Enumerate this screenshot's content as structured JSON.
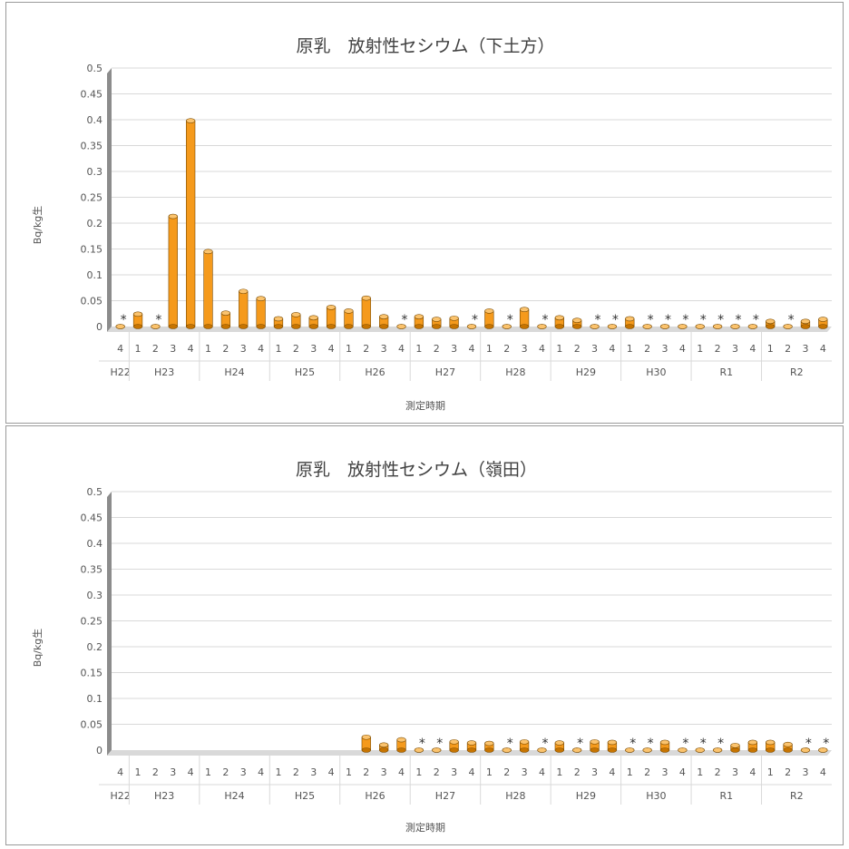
{
  "chart_data": [
    {
      "type": "bar",
      "title": "原乳　放射性セシウム（下土方）",
      "xlabel": "測定時期",
      "ylabel": "Bq/kg生",
      "ylim": [
        0,
        0.5
      ],
      "yticks": [
        "0",
        "0.05",
        "0.1",
        "0.15",
        "0.2",
        "0.25",
        "0.3",
        "0.35",
        "0.4",
        "0.45",
        "0.5"
      ],
      "groups": [
        {
          "label": "H22",
          "quarters": [
            "4"
          ]
        },
        {
          "label": "H23",
          "quarters": [
            "1",
            "2",
            "3",
            "4"
          ]
        },
        {
          "label": "H24",
          "quarters": [
            "1",
            "2",
            "3",
            "4"
          ]
        },
        {
          "label": "H25",
          "quarters": [
            "1",
            "2",
            "3",
            "4"
          ]
        },
        {
          "label": "H26",
          "quarters": [
            "1",
            "2",
            "3",
            "4"
          ]
        },
        {
          "label": "H27",
          "quarters": [
            "1",
            "2",
            "3",
            "4"
          ]
        },
        {
          "label": "H28",
          "quarters": [
            "1",
            "2",
            "3",
            "4"
          ]
        },
        {
          "label": "H29",
          "quarters": [
            "1",
            "2",
            "3",
            "4"
          ]
        },
        {
          "label": "H30",
          "quarters": [
            "1",
            "2",
            "3",
            "4"
          ]
        },
        {
          "label": "R1",
          "quarters": [
            "1",
            "2",
            "3",
            "4"
          ]
        },
        {
          "label": "R2",
          "quarters": [
            "1",
            "2",
            "3",
            "4"
          ]
        }
      ],
      "values": [
        0,
        0.024,
        0,
        0.213,
        0.398,
        0.145,
        0.026,
        0.068,
        0.054,
        0.015,
        0.023,
        0.017,
        0.037,
        0.03,
        0.055,
        0.019,
        0,
        0.019,
        0.014,
        0.016,
        0,
        0.03,
        0,
        0.033,
        0,
        0.017,
        0.012,
        0,
        0,
        0.015,
        0,
        0,
        0,
        0,
        0,
        0,
        0,
        0.01,
        0,
        0.01,
        0.014
      ],
      "nd_marker": "*",
      "nd": [
        true,
        false,
        true,
        false,
        false,
        false,
        false,
        false,
        false,
        false,
        false,
        false,
        false,
        false,
        false,
        false,
        true,
        false,
        false,
        false,
        true,
        false,
        true,
        false,
        true,
        false,
        false,
        true,
        true,
        false,
        true,
        true,
        true,
        true,
        true,
        true,
        true,
        false,
        true,
        false,
        false
      ],
      "colors": {
        "bar": "#F59A1C"
      }
    },
    {
      "type": "bar",
      "title": "原乳　放射性セシウム（嶺田）",
      "xlabel": "測定時期",
      "ylabel": "Bq/kg生",
      "ylim": [
        0,
        0.5
      ],
      "yticks": [
        "0",
        "0.05",
        "0.1",
        "0.15",
        "0.2",
        "0.25",
        "0.3",
        "0.35",
        "0.4",
        "0.45",
        "0.5"
      ],
      "groups": [
        {
          "label": "H22",
          "quarters": [
            "4"
          ]
        },
        {
          "label": "H23",
          "quarters": [
            "1",
            "2",
            "3",
            "4"
          ]
        },
        {
          "label": "H24",
          "quarters": [
            "1",
            "2",
            "3",
            "4"
          ]
        },
        {
          "label": "H25",
          "quarters": [
            "1",
            "2",
            "3",
            "4"
          ]
        },
        {
          "label": "H26",
          "quarters": [
            "1",
            "2",
            "3",
            "4"
          ]
        },
        {
          "label": "H27",
          "quarters": [
            "1",
            "2",
            "3",
            "4"
          ]
        },
        {
          "label": "H28",
          "quarters": [
            "1",
            "2",
            "3",
            "4"
          ]
        },
        {
          "label": "H29",
          "quarters": [
            "1",
            "2",
            "3",
            "4"
          ]
        },
        {
          "label": "H30",
          "quarters": [
            "1",
            "2",
            "3",
            "4"
          ]
        },
        {
          "label": "R1",
          "quarters": [
            "1",
            "2",
            "3",
            "4"
          ]
        },
        {
          "label": "R2",
          "quarters": [
            "1",
            "2",
            "3",
            "4"
          ]
        }
      ],
      "values": [
        null,
        null,
        null,
        null,
        null,
        null,
        null,
        null,
        null,
        null,
        null,
        null,
        null,
        null,
        0.025,
        0.01,
        0.02,
        0,
        0,
        0.016,
        0.014,
        0.013,
        0,
        0.016,
        0,
        0.014,
        0,
        0.016,
        0.015,
        0,
        0,
        0.015,
        0,
        0,
        0,
        0.009,
        0.015,
        0.015,
        0.011,
        0,
        0
      ],
      "nd_marker": "*",
      "nd": [
        false,
        false,
        false,
        false,
        false,
        false,
        false,
        false,
        false,
        false,
        false,
        false,
        false,
        false,
        false,
        false,
        false,
        true,
        true,
        false,
        false,
        false,
        true,
        false,
        true,
        false,
        true,
        false,
        false,
        true,
        true,
        false,
        true,
        true,
        true,
        false,
        false,
        false,
        false,
        true,
        true
      ],
      "colors": {
        "bar": "#F59A1C"
      }
    }
  ]
}
